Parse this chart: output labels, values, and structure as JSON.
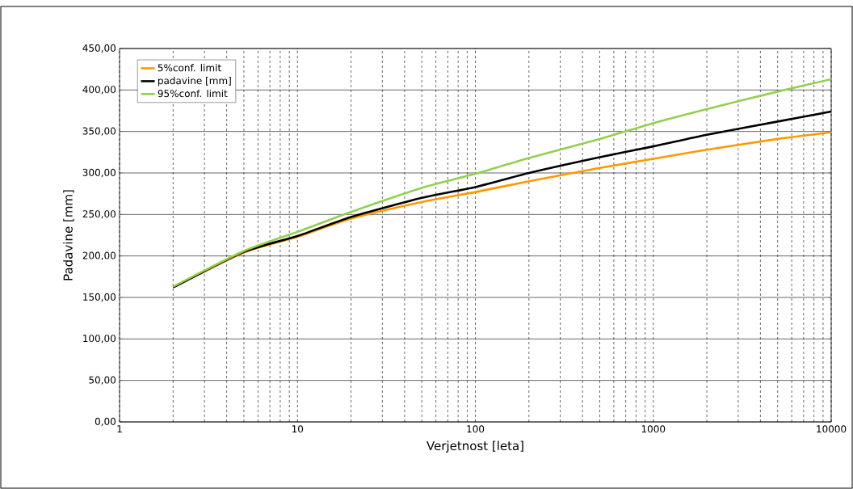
{
  "chart_data": {
    "type": "line",
    "xlabel": "Verjetnost [leta]",
    "ylabel": "Padavine [mm]",
    "x": [
      2,
      5,
      10,
      20,
      50,
      100,
      200,
      500,
      1000,
      2000,
      5000,
      10000
    ],
    "series": [
      {
        "name": "5%conf. limit",
        "color": "#ff9900",
        "values": [
          162,
          204,
          223,
          245,
          265,
          277,
          290,
          306,
          317,
          328,
          341,
          349
        ]
      },
      {
        "name": "padavine [mm]",
        "color": "#000000",
        "values": [
          162,
          205,
          224,
          247,
          270,
          283,
          300,
          319,
          332,
          346,
          362,
          374
        ]
      },
      {
        "name": "95%conf. limit",
        "color": "#92d050",
        "values": [
          163,
          206,
          229,
          253,
          282,
          299,
          318,
          341,
          360,
          377,
          398,
          413
        ]
      }
    ],
    "log": "x",
    "xlim": [
      1,
      10000
    ],
    "xticks": [
      1,
      10,
      100,
      1000,
      10000
    ],
    "ylim": [
      0,
      450
    ],
    "yticks": [
      {
        "value": 0,
        "label": "0,00"
      },
      {
        "value": 50,
        "label": "50,00"
      },
      {
        "value": 100,
        "label": "100,00"
      },
      {
        "value": 150,
        "label": "150,00"
      },
      {
        "value": 200,
        "label": "200,00"
      },
      {
        "value": 250,
        "label": "250,00"
      },
      {
        "value": 300,
        "label": "300,00"
      },
      {
        "value": 350,
        "label": "350,00"
      },
      {
        "value": 400,
        "label": "400,00"
      },
      {
        "value": 450,
        "label": "450,00"
      }
    ],
    "grid": true,
    "legend": "top left",
    "marker": "none",
    "line_style": "solid"
  }
}
